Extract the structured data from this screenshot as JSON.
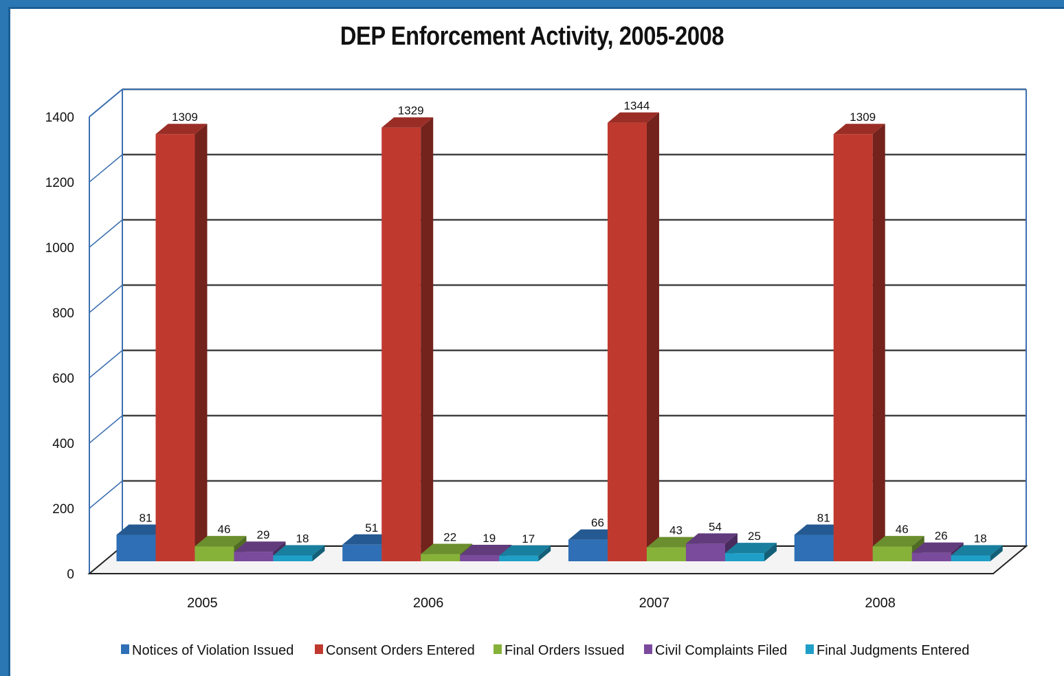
{
  "chart_data": {
    "type": "bar",
    "title": "DEP Enforcement Activity, 2005-2008",
    "xlabel": "",
    "ylabel": "",
    "ylim": [
      0,
      1400
    ],
    "yticks": [
      "0",
      "200",
      "400",
      "600",
      "800",
      "1000",
      "1200",
      "1400"
    ],
    "categories": [
      "2005",
      "2006",
      "2007",
      "2008"
    ],
    "series": [
      {
        "name": "Notices of Violation Issued",
        "color": "#2e6fb5",
        "values": [
          81,
          51,
          66,
          81
        ]
      },
      {
        "name": "Consent Orders Entered",
        "color": "#c0392f",
        "values": [
          1309,
          1329,
          1344,
          1309
        ]
      },
      {
        "name": "Final Orders Issued",
        "color": "#86b23a",
        "values": [
          46,
          22,
          43,
          46
        ]
      },
      {
        "name": "Civil Complaints Filed",
        "color": "#7a4a9c",
        "values": [
          29,
          19,
          54,
          26
        ]
      },
      {
        "name": "Final Judgments Entered",
        "color": "#1f9fc7",
        "values": [
          18,
          17,
          25,
          18
        ]
      }
    ],
    "grid": true,
    "legend_position": "bottom",
    "style": "3d-clustered-column"
  }
}
